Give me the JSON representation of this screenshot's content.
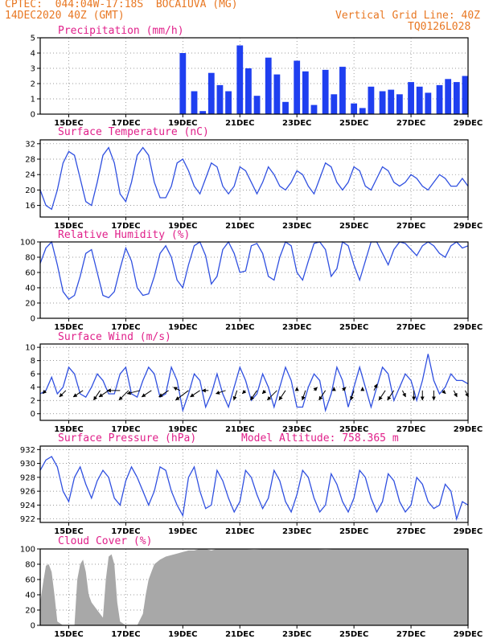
{
  "header": {
    "line1": "CPTEC:  044:04W-17:18S  BOCAIUVA (MG)",
    "line2": "14DEC2020 40Z (GMT)",
    "grid_note": "Vertical Grid Line: 40Z",
    "code": "TQ0126L028"
  },
  "x_ticks": [
    "15DEC",
    "17DEC",
    "19DEC",
    "21DEC",
    "23DEC",
    "25DEC",
    "27DEC",
    "29DEC"
  ],
  "x_tick_days": [
    15,
    17,
    19,
    21,
    23,
    25,
    27,
    29
  ],
  "x_range_days": [
    14,
    29
  ],
  "chart_data": [
    {
      "id": "precip",
      "type": "bar",
      "title": "Precipitation (mm/h)",
      "unit": "mm/h",
      "ylim": [
        0,
        5
      ],
      "yticks": [
        0,
        1,
        2,
        3,
        4,
        5
      ],
      "color": "#1f3ff0",
      "series": [
        {
          "x": [
            19.0,
            19.4,
            19.7,
            20.0,
            20.3,
            20.6,
            21.0,
            21.3,
            21.6,
            22.0,
            22.3,
            22.6,
            23.0,
            23.3,
            23.6,
            24.0,
            24.3,
            24.6,
            25.0,
            25.3,
            25.6,
            26.0,
            26.3,
            26.6,
            27.0,
            27.3,
            27.6,
            28.0,
            28.3,
            28.6,
            28.9
          ],
          "values": [
            4.0,
            1.5,
            0.2,
            2.7,
            1.9,
            1.5,
            4.5,
            3.0,
            1.2,
            3.7,
            2.6,
            0.8,
            3.5,
            2.8,
            0.6,
            2.9,
            1.3,
            3.1,
            0.7,
            0.4,
            1.8,
            1.5,
            1.6,
            1.3,
            2.1,
            1.8,
            1.4,
            1.9,
            2.3,
            2.1,
            2.5
          ]
        }
      ]
    },
    {
      "id": "temp",
      "type": "line",
      "title": "Surface Temperature (nC)",
      "unit": "C",
      "ylim": [
        13,
        33
      ],
      "yticks": [
        16,
        20,
        24,
        28,
        32
      ],
      "color": "#3050e0",
      "x": [
        14.0,
        14.2,
        14.4,
        14.6,
        14.8,
        15.0,
        15.2,
        15.4,
        15.6,
        15.8,
        16.0,
        16.2,
        16.4,
        16.6,
        16.8,
        17.0,
        17.2,
        17.4,
        17.6,
        17.8,
        18.0,
        18.2,
        18.4,
        18.6,
        18.8,
        19.0,
        19.2,
        19.4,
        19.6,
        19.8,
        20.0,
        20.2,
        20.4,
        20.6,
        20.8,
        21.0,
        21.2,
        21.4,
        21.6,
        21.8,
        22.0,
        22.2,
        22.4,
        22.6,
        22.8,
        23.0,
        23.2,
        23.4,
        23.6,
        23.8,
        24.0,
        24.2,
        24.4,
        24.6,
        24.8,
        25.0,
        25.2,
        25.4,
        25.6,
        25.8,
        26.0,
        26.2,
        26.4,
        26.6,
        26.8,
        27.0,
        27.2,
        27.4,
        27.6,
        27.8,
        28.0,
        28.2,
        28.4,
        28.6,
        28.8,
        29.0
      ],
      "values": [
        20,
        16,
        15,
        20,
        27,
        30,
        29,
        23,
        17,
        16,
        22,
        29,
        31,
        27,
        19,
        17,
        22,
        29,
        31,
        29,
        22,
        18,
        18,
        21,
        27,
        28,
        25,
        21,
        19,
        23,
        27,
        26,
        21,
        19,
        21,
        26,
        25,
        22,
        19,
        22,
        26,
        24,
        21,
        20,
        22,
        25,
        24,
        21,
        19,
        23,
        27,
        26,
        22,
        20,
        22,
        26,
        25,
        21,
        20,
        23,
        26,
        25,
        22,
        21,
        22,
        24,
        23,
        21,
        20,
        22,
        24,
        23,
        21,
        21,
        23,
        21
      ]
    },
    {
      "id": "rh",
      "type": "line",
      "title": "Relative Humidity (%)",
      "unit": "%",
      "ylim": [
        0,
        100
      ],
      "yticks": [
        0,
        20,
        40,
        60,
        80,
        100
      ],
      "color": "#3050e0",
      "x": [
        14.0,
        14.2,
        14.4,
        14.6,
        14.8,
        15.0,
        15.2,
        15.4,
        15.6,
        15.8,
        16.0,
        16.2,
        16.4,
        16.6,
        16.8,
        17.0,
        17.2,
        17.4,
        17.6,
        17.8,
        18.0,
        18.2,
        18.4,
        18.6,
        18.8,
        19.0,
        19.2,
        19.4,
        19.6,
        19.8,
        20.0,
        20.2,
        20.4,
        20.6,
        20.8,
        21.0,
        21.2,
        21.4,
        21.6,
        21.8,
        22.0,
        22.2,
        22.4,
        22.6,
        22.8,
        23.0,
        23.2,
        23.4,
        23.6,
        23.8,
        24.0,
        24.2,
        24.4,
        24.6,
        24.8,
        25.0,
        25.2,
        25.4,
        25.6,
        25.8,
        26.0,
        26.2,
        26.4,
        26.6,
        26.8,
        27.0,
        27.2,
        27.4,
        27.6,
        27.8,
        28.0,
        28.2,
        28.4,
        28.6,
        28.8,
        29.0
      ],
      "values": [
        72,
        92,
        100,
        70,
        35,
        25,
        30,
        55,
        85,
        90,
        60,
        30,
        27,
        35,
        65,
        92,
        75,
        40,
        30,
        32,
        55,
        85,
        95,
        80,
        50,
        40,
        70,
        95,
        100,
        82,
        45,
        55,
        90,
        100,
        85,
        60,
        62,
        95,
        98,
        85,
        55,
        50,
        80,
        100,
        95,
        60,
        50,
        75,
        98,
        100,
        90,
        55,
        65,
        100,
        95,
        70,
        50,
        75,
        100,
        100,
        85,
        70,
        90,
        100,
        98,
        90,
        82,
        95,
        100,
        95,
        85,
        80,
        95,
        100,
        92,
        95
      ]
    },
    {
      "id": "wind",
      "type": "line",
      "title": "Surface Wind (m/s)",
      "unit": "m/s",
      "ylim": [
        -1,
        10.5
      ],
      "yticks": [
        0,
        2,
        4,
        6,
        8,
        10
      ],
      "color": "#3050e0",
      "x": [
        14.0,
        14.2,
        14.4,
        14.6,
        14.8,
        15.0,
        15.2,
        15.4,
        15.6,
        15.8,
        16.0,
        16.2,
        16.4,
        16.6,
        16.8,
        17.0,
        17.2,
        17.4,
        17.6,
        17.8,
        18.0,
        18.2,
        18.4,
        18.6,
        18.8,
        19.0,
        19.2,
        19.4,
        19.6,
        19.8,
        20.0,
        20.2,
        20.4,
        20.6,
        20.8,
        21.0,
        21.2,
        21.4,
        21.6,
        21.8,
        22.0,
        22.2,
        22.4,
        22.6,
        22.8,
        23.0,
        23.2,
        23.4,
        23.6,
        23.8,
        24.0,
        24.2,
        24.4,
        24.6,
        24.8,
        25.0,
        25.2,
        25.4,
        25.6,
        25.8,
        26.0,
        26.2,
        26.4,
        26.6,
        26.8,
        27.0,
        27.2,
        27.4,
        27.6,
        27.8,
        28.0,
        28.2,
        28.4,
        28.6,
        28.8,
        29.0
      ],
      "values": [
        3,
        3.5,
        5.5,
        3,
        4,
        7,
        6,
        3,
        2.5,
        4,
        6,
        5,
        3,
        3,
        6,
        7,
        3,
        2.5,
        5,
        7,
        6,
        2.5,
        3,
        7,
        5,
        0.5,
        3,
        6,
        5,
        1,
        3,
        6,
        3,
        1,
        4,
        7,
        5,
        2,
        3,
        6,
        4,
        1,
        4,
        7,
        5,
        1,
        1,
        4,
        6,
        5,
        0.5,
        3,
        7,
        5,
        1,
        4,
        7,
        4,
        1,
        4,
        7,
        6,
        2,
        4,
        6,
        5,
        2,
        5,
        9,
        5,
        3,
        4,
        6,
        5,
        5,
        4.5
      ],
      "vectors": {
        "x": [
          14.2,
          14.9,
          15.5,
          16.1,
          16.4,
          16.8,
          17.1,
          17.5,
          17.9,
          18.5,
          18.9,
          19.2,
          19.6,
          19.9,
          20.5,
          20.9,
          21.2,
          21.6,
          21.9,
          22.3,
          22.6,
          23.0,
          23.3,
          23.6,
          24.0,
          24.3,
          24.6,
          25.0,
          25.3,
          25.7,
          26.1,
          26.4,
          26.7,
          27.1,
          27.4,
          27.8,
          28.1,
          28.5,
          28.9
        ],
        "u": [
          -1,
          -2,
          -3,
          -2,
          -3,
          -4,
          -3,
          -4,
          -3,
          -3,
          -2,
          -4,
          -3,
          -2,
          -3,
          -1,
          -1,
          -2,
          -1,
          -3,
          -2,
          0,
          -1,
          1,
          -2,
          0,
          1,
          -1,
          0,
          1,
          -2,
          -2,
          1,
          0,
          0,
          0,
          1,
          1,
          1
        ],
        "v": [
          -1,
          -2,
          -2,
          -3,
          -2,
          0,
          -3,
          -1,
          -2,
          -2,
          1,
          -3,
          -2,
          0,
          -1,
          -3,
          -1,
          -3,
          -1,
          -3,
          -3,
          1,
          -3,
          1,
          -3,
          1,
          1,
          -3,
          1,
          2,
          -3,
          -3,
          -2,
          -3,
          -3,
          -3,
          -1,
          -2,
          -2
        ]
      }
    },
    {
      "id": "pressure",
      "type": "line",
      "title": "Surface Pressure (hPa)",
      "annotation": "Model Altitude: 758.365 m",
      "unit": "hPa",
      "ylim": [
        921.5,
        932.5
      ],
      "yticks": [
        922,
        924,
        926,
        928,
        930,
        932
      ],
      "color": "#3050e0",
      "x": [
        14.0,
        14.2,
        14.4,
        14.6,
        14.8,
        15.0,
        15.2,
        15.4,
        15.6,
        15.8,
        16.0,
        16.2,
        16.4,
        16.6,
        16.8,
        17.0,
        17.2,
        17.4,
        17.6,
        17.8,
        18.0,
        18.2,
        18.4,
        18.6,
        18.8,
        19.0,
        19.2,
        19.4,
        19.6,
        19.8,
        20.0,
        20.2,
        20.4,
        20.6,
        20.8,
        21.0,
        21.2,
        21.4,
        21.6,
        21.8,
        22.0,
        22.2,
        22.4,
        22.6,
        22.8,
        23.0,
        23.2,
        23.4,
        23.6,
        23.8,
        24.0,
        24.2,
        24.4,
        24.6,
        24.8,
        25.0,
        25.2,
        25.4,
        25.6,
        25.8,
        26.0,
        26.2,
        26.4,
        26.6,
        26.8,
        27.0,
        27.2,
        27.4,
        27.6,
        27.8,
        28.0,
        28.2,
        28.4,
        28.6,
        28.8,
        29.0
      ],
      "values": [
        929,
        930.5,
        931,
        929.5,
        926,
        924.5,
        928,
        929.5,
        927,
        925,
        927.5,
        929,
        928,
        925,
        924,
        927.5,
        929.5,
        928,
        926,
        924,
        926,
        929.5,
        929,
        926,
        924,
        922.5,
        928,
        929.5,
        926,
        923.5,
        924,
        929,
        927.5,
        925,
        923,
        924.5,
        929,
        928,
        925.5,
        923.5,
        925,
        929,
        927.5,
        924.5,
        923,
        925.5,
        929,
        928,
        925,
        923,
        924,
        928.5,
        927,
        924.5,
        923,
        925,
        929,
        928,
        925,
        923,
        924.5,
        928.5,
        927.5,
        924.5,
        923,
        924,
        928,
        927,
        924.5,
        923.5,
        924,
        927,
        926,
        922,
        924.5,
        924
      ]
    },
    {
      "id": "cloud",
      "type": "area",
      "title": "Cloud Cover (%)",
      "unit": "%",
      "ylim": [
        0,
        100
      ],
      "yticks": [
        0,
        20,
        40,
        60,
        80,
        100
      ],
      "color": "#a8a8a8",
      "x": [
        14.0,
        14.1,
        14.2,
        14.3,
        14.4,
        14.5,
        14.6,
        14.8,
        15.0,
        15.2,
        15.3,
        15.4,
        15.5,
        15.6,
        15.7,
        15.8,
        16.0,
        16.2,
        16.3,
        16.4,
        16.5,
        16.6,
        16.7,
        16.8,
        17.0,
        17.2,
        17.4,
        17.6,
        17.7,
        17.8,
        17.9,
        18.0,
        18.2,
        18.4,
        18.6,
        18.8,
        19.0,
        19.2,
        19.4,
        19.6,
        19.8,
        20.0,
        20.2,
        20.4,
        20.6,
        21.0,
        21.5,
        22.0,
        22.5,
        23.0,
        23.5,
        24.0,
        24.5,
        25.0,
        25.5,
        26.0,
        26.5,
        27.0,
        27.5,
        28.0,
        28.5,
        29.0
      ],
      "values": [
        30,
        55,
        78,
        80,
        70,
        40,
        5,
        0,
        0,
        0,
        60,
        80,
        86,
        70,
        40,
        30,
        20,
        10,
        60,
        90,
        93,
        80,
        30,
        5,
        0,
        0,
        0,
        15,
        40,
        60,
        70,
        80,
        86,
        90,
        92,
        94,
        96,
        98,
        98,
        100,
        100,
        98,
        100,
        100,
        100,
        100,
        99,
        100,
        100,
        100,
        100,
        99,
        100,
        100,
        100,
        100,
        100,
        100,
        100,
        100,
        100,
        100
      ]
    }
  ]
}
